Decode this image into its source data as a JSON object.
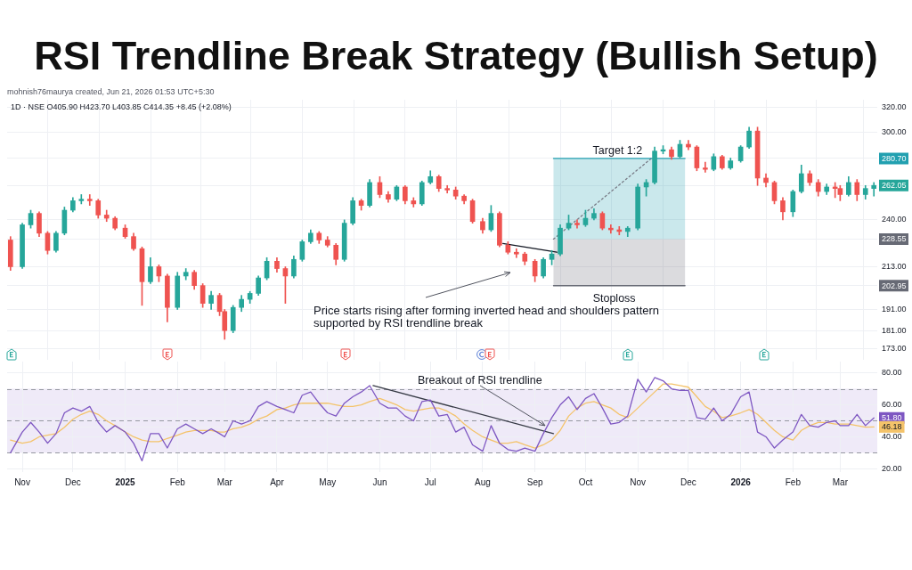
{
  "chart_data": [
    {
      "type": "candlestick",
      "title": "RSI Trendline Break Strategy (Bullish Setup)",
      "subtitle": "mohnish76maurya created, Jun 21, 2026 01:53 UTC+5:30",
      "x": [
        "2024-10-25",
        "2024-11-01",
        "2024-11-06",
        "2024-11-11",
        "2024-11-16",
        "2024-11-21",
        "2024-11-26",
        "2024-12-01",
        "2024-12-06",
        "2024-12-11",
        "2024-12-16",
        "2024-12-21",
        "2024-12-26",
        "2025-01-01",
        "2025-01-06",
        "2025-01-11",
        "2025-01-16",
        "2025-01-21",
        "2025-01-26",
        "2025-02-01",
        "2025-02-06",
        "2025-02-11",
        "2025-02-16",
        "2025-02-21",
        "2025-02-26",
        "2025-03-01",
        "2025-03-06",
        "2025-03-11",
        "2025-03-16",
        "2025-03-21",
        "2025-03-26",
        "2025-04-01",
        "2025-04-06",
        "2025-04-11",
        "2025-04-16",
        "2025-04-21",
        "2025-04-26",
        "2025-05-01",
        "2025-05-06",
        "2025-05-11",
        "2025-05-16",
        "2025-05-21",
        "2025-05-26",
        "2025-06-01",
        "2025-06-06",
        "2025-06-11",
        "2025-06-16",
        "2025-06-21",
        "2025-06-26",
        "2025-07-01",
        "2025-07-06",
        "2025-07-11",
        "2025-07-16",
        "2025-07-21",
        "2025-07-26",
        "2025-08-01",
        "2025-08-06",
        "2025-08-11",
        "2025-08-16",
        "2025-08-21",
        "2025-08-26",
        "2025-09-01",
        "2025-09-06",
        "2025-09-11",
        "2025-09-16",
        "2025-09-21",
        "2025-09-26",
        "2025-10-01",
        "2025-10-06",
        "2025-10-11",
        "2025-10-16",
        "2025-10-21",
        "2025-10-26",
        "2025-11-01",
        "2025-11-06",
        "2025-11-11",
        "2025-11-16",
        "2025-11-21",
        "2025-11-26",
        "2025-12-01",
        "2025-12-06",
        "2025-12-11",
        "2025-12-16",
        "2025-12-21",
        "2025-12-26",
        "2026-01-01",
        "2026-01-06",
        "2026-01-11",
        "2026-01-16",
        "2026-01-21",
        "2026-01-26",
        "2026-02-01",
        "2026-02-06",
        "2026-02-11",
        "2026-02-16",
        "2026-02-21",
        "2026-02-26",
        "2026-03-01",
        "2026-03-06",
        "2026-03-11",
        "2026-03-16",
        "2026-03-21"
      ],
      "ohlc": [
        [
          228,
          230,
          211,
          213
        ],
        [
          213,
          238,
          212,
          237
        ],
        [
          237,
          246,
          235,
          244
        ],
        [
          244,
          245,
          230,
          232
        ],
        [
          232,
          233,
          220,
          222
        ],
        [
          222,
          233,
          221,
          232
        ],
        [
          232,
          248,
          231,
          246
        ],
        [
          246,
          254,
          245,
          252
        ],
        [
          252,
          256,
          250,
          253
        ],
        [
          253,
          256,
          249,
          252
        ],
        [
          252,
          253,
          241,
          243
        ],
        [
          243,
          246,
          239,
          241
        ],
        [
          241,
          242,
          234,
          235
        ],
        [
          235,
          237,
          229,
          230
        ],
        [
          230,
          232,
          222,
          223
        ],
        [
          223,
          224,
          193,
          205
        ],
        [
          205,
          218,
          204,
          213
        ],
        [
          213,
          214,
          205,
          208
        ],
        [
          208,
          209,
          185,
          192
        ],
        [
          192,
          210,
          191,
          208
        ],
        [
          208,
          212,
          206,
          210
        ],
        [
          210,
          211,
          201,
          203
        ],
        [
          203,
          204,
          192,
          194
        ],
        [
          194,
          200,
          191,
          198
        ],
        [
          198,
          199,
          188,
          190
        ],
        [
          190,
          191,
          177,
          181
        ],
        [
          181,
          193,
          180,
          192
        ],
        [
          192,
          198,
          190,
          196
        ],
        [
          196,
          200,
          194,
          199
        ],
        [
          199,
          208,
          198,
          207
        ],
        [
          207,
          218,
          206,
          216
        ],
        [
          216,
          218,
          210,
          212
        ],
        [
          212,
          213,
          194,
          208
        ],
        [
          208,
          219,
          207,
          217
        ],
        [
          217,
          228,
          216,
          227
        ],
        [
          227,
          234,
          226,
          232
        ],
        [
          232,
          233,
          226,
          228
        ],
        [
          228,
          230,
          224,
          225
        ],
        [
          225,
          226,
          214,
          217
        ],
        [
          217,
          240,
          216,
          238
        ],
        [
          238,
          254,
          237,
          252
        ],
        [
          252,
          253,
          246,
          249
        ],
        [
          249,
          266,
          248,
          264
        ],
        [
          264,
          268,
          254,
          256
        ],
        [
          256,
          258,
          251,
          253
        ],
        [
          253,
          262,
          252,
          261
        ],
        [
          261,
          262,
          250,
          252
        ],
        [
          252,
          254,
          248,
          250
        ],
        [
          250,
          265,
          249,
          264
        ],
        [
          264,
          272,
          263,
          268
        ],
        [
          268,
          269,
          258,
          260
        ],
        [
          260,
          262,
          257,
          259
        ],
        [
          259,
          261,
          253,
          255
        ],
        [
          255,
          256,
          250,
          252
        ],
        [
          252,
          253,
          238,
          239
        ],
        [
          239,
          241,
          232,
          234
        ],
        [
          234,
          249,
          233,
          244
        ],
        [
          244,
          245,
          224,
          225
        ],
        [
          225,
          227,
          220,
          221
        ],
        [
          221,
          223,
          218,
          220
        ],
        [
          220,
          221,
          214,
          216
        ],
        [
          216,
          217,
          205,
          208
        ],
        [
          208,
          218,
          207,
          217
        ],
        [
          217,
          222,
          214,
          220
        ],
        [
          220,
          237,
          219,
          235
        ],
        [
          235,
          243,
          234,
          238
        ],
        [
          238,
          240,
          235,
          237
        ],
        [
          237,
          246,
          236,
          241
        ],
        [
          241,
          247,
          240,
          244
        ],
        [
          244,
          245,
          234,
          235
        ],
        [
          235,
          237,
          232,
          234
        ],
        [
          234,
          236,
          231,
          233
        ],
        [
          233,
          236,
          230,
          235
        ],
        [
          235,
          263,
          234,
          261
        ],
        [
          261,
          266,
          255,
          264
        ],
        [
          264,
          289,
          263,
          286
        ],
        [
          286,
          290,
          284,
          287
        ],
        [
          287,
          289,
          280,
          282
        ],
        [
          282,
          294,
          281,
          291
        ],
        [
          291,
          294,
          287,
          289
        ],
        [
          289,
          290,
          272,
          274
        ],
        [
          274,
          278,
          271,
          273
        ],
        [
          273,
          284,
          272,
          282
        ],
        [
          282,
          283,
          273,
          274
        ],
        [
          274,
          281,
          273,
          279
        ],
        [
          279,
          290,
          278,
          289
        ],
        [
          289,
          304,
          288,
          301
        ],
        [
          301,
          304,
          262,
          267
        ],
        [
          267,
          270,
          261,
          264
        ],
        [
          264,
          265,
          250,
          252
        ],
        [
          252,
          254,
          240,
          245
        ],
        [
          245,
          259,
          242,
          258
        ],
        [
          258,
          276,
          257,
          270
        ],
        [
          270,
          272,
          262,
          264
        ],
        [
          264,
          266,
          255,
          258
        ],
        [
          258,
          263,
          256,
          261
        ],
        [
          261,
          264,
          254,
          260
        ],
        [
          260,
          262,
          252,
          256
        ],
        [
          256,
          268,
          255,
          264
        ],
        [
          264,
          266,
          252,
          256
        ],
        [
          256,
          262,
          253,
          260
        ],
        [
          260,
          264,
          255,
          262.05
        ]
      ],
      "colors": [
        "#ef5350",
        "#26a69a",
        "#26a69a",
        "#ef5350",
        "#ef5350",
        "#26a69a",
        "#26a69a",
        "#26a69a",
        "#26a69a",
        "#ef5350",
        "#ef5350",
        "#ef5350",
        "#ef5350",
        "#ef5350",
        "#ef5350",
        "#ef5350",
        "#26a69a",
        "#ef5350",
        "#ef5350",
        "#26a69a",
        "#26a69a",
        "#ef5350",
        "#ef5350",
        "#26a69a",
        "#ef5350",
        "#ef5350",
        "#26a69a",
        "#26a69a",
        "#26a69a",
        "#26a69a",
        "#26a69a",
        "#ef5350",
        "#ef5350",
        "#26a69a",
        "#26a69a",
        "#26a69a",
        "#ef5350",
        "#ef5350",
        "#ef5350",
        "#26a69a",
        "#26a69a",
        "#ef5350",
        "#26a69a",
        "#ef5350",
        "#ef5350",
        "#26a69a",
        "#ef5350",
        "#ef5350",
        "#26a69a",
        "#26a69a",
        "#ef5350",
        "#ef5350",
        "#ef5350",
        "#ef5350",
        "#ef5350",
        "#ef5350",
        "#26a69a",
        "#ef5350",
        "#ef5350",
        "#ef5350",
        "#ef5350",
        "#ef5350",
        "#26a69a",
        "#26a69a",
        "#26a69a",
        "#26a69a",
        "#ef5350",
        "#26a69a",
        "#26a69a",
        "#ef5350",
        "#ef5350",
        "#ef5350",
        "#26a69a",
        "#26a69a",
        "#26a69a",
        "#26a69a",
        "#26a69a",
        "#ef5350",
        "#26a69a",
        "#ef5350",
        "#ef5350",
        "#ef5350",
        "#26a69a",
        "#ef5350",
        "#26a69a",
        "#26a69a",
        "#26a69a",
        "#ef5350",
        "#ef5350",
        "#ef5350",
        "#ef5350",
        "#26a69a",
        "#26a69a",
        "#ef5350",
        "#ef5350",
        "#26a69a",
        "#ef5350",
        "#ef5350",
        "#26a69a",
        "#ef5350",
        "#26a69a",
        "#26a69a"
      ],
      "series": [
        {
          "type": "line",
          "x": [
            "2025-09-12",
            "2025-11-29"
          ],
          "values": [
            280.7,
            280.7
          ],
          "lower": [
            228.55,
            228.55
          ],
          "upper": [
            280.7,
            280.7
          ],
          "color": "#22a0b0"
        },
        {
          "type": "line",
          "x": [
            "2025-09-12",
            "2025-11-29"
          ],
          "values": [
            202.95,
            202.95
          ],
          "lower": [
            202.95,
            202.95
          ],
          "upper": [
            228.55,
            228.55
          ],
          "color": "#676a75"
        },
        {
          "type": "line",
          "x": [
            "2025-09-12",
            "2025-11-09"
          ],
          "values": [
            228.55,
            280.7
          ],
          "color": "#787b86",
          "line_style": "dotted"
        },
        {
          "type": "line",
          "x": [
            "2025-08-13",
            "2025-09-14"
          ],
          "values": [
            226,
            221
          ],
          "color": "#131722"
        }
      ],
      "log": true,
      "ylim": [
        168,
        326
      ],
      "yticks": [
        {
          "value": 320,
          "label": "320.00"
        },
        {
          "value": 300,
          "label": "300.00"
        },
        {
          "value": 280.7,
          "label": "280.70"
        },
        {
          "value": 262.05,
          "label": "262.05"
        },
        {
          "value": 240,
          "label": "240.00"
        },
        {
          "value": 228.55,
          "label": "228.55"
        },
        {
          "value": 213,
          "label": "213.00"
        },
        {
          "value": 202.95,
          "label": "202.95"
        },
        {
          "value": 191,
          "label": "191.00"
        },
        {
          "value": 181,
          "label": "181.00"
        },
        {
          "value": 173,
          "label": "173.00"
        }
      ],
      "xlim": [
        "2024-10-23",
        "2026-03-23"
      ],
      "xticks": [
        {
          "value": "2024-11-01",
          "label": null
        },
        {
          "value": "2024-12-01",
          "label": null
        },
        {
          "value": "2025-01-01",
          "label": null
        },
        {
          "value": "2025-02-01",
          "label": null
        },
        {
          "value": "2025-03-01",
          "label": null
        },
        {
          "value": "2025-04-01",
          "label": null
        },
        {
          "value": "2025-05-01",
          "label": null
        },
        {
          "value": "2025-06-01",
          "label": null
        },
        {
          "value": "2025-07-01",
          "label": null
        },
        {
          "value": "2025-08-01",
          "label": null
        },
        {
          "value": "2025-09-01",
          "label": null
        },
        {
          "value": "2025-10-01",
          "label": null
        },
        {
          "value": "2025-11-01",
          "label": null
        },
        {
          "value": "2025-12-01",
          "label": null
        },
        {
          "value": "2026-01-01",
          "label": null
        },
        {
          "value": "2026-02-01",
          "label": null
        },
        {
          "value": "2026-03-01",
          "label": null
        }
      ],
      "tick_labels": "y",
      "grid": true,
      "annotations": [
        "1D · NSE O405.90 H423.70 L403.85 C414.35 +8.45 (+2.08%)",
        {
          "text": "Target 1:2",
          "x": "2025-10-20",
          "y": 280.7
        },
        {
          "text": "Stoploss",
          "x": "2025-10-18",
          "y": 202.95
        },
        "Price starts rising after forming inverted head and shoulders pattern supported by RSI trendline break"
      ]
    },
    {
      "type": "line",
      "x": [
        "2024-10-25",
        "2024-11-01",
        "2024-11-06",
        "2024-11-11",
        "2024-11-16",
        "2024-11-21",
        "2024-11-26",
        "2024-12-01",
        "2024-12-06",
        "2024-12-11",
        "2024-12-16",
        "2024-12-21",
        "2024-12-26",
        "2025-01-01",
        "2025-01-06",
        "2025-01-11",
        "2025-01-16",
        "2025-01-21",
        "2025-01-26",
        "2025-02-01",
        "2025-02-06",
        "2025-02-11",
        "2025-02-16",
        "2025-02-21",
        "2025-02-26",
        "2025-03-01",
        "2025-03-06",
        "2025-03-11",
        "2025-03-16",
        "2025-03-21",
        "2025-03-26",
        "2025-04-01",
        "2025-04-06",
        "2025-04-11",
        "2025-04-16",
        "2025-04-21",
        "2025-04-26",
        "2025-05-01",
        "2025-05-06",
        "2025-05-11",
        "2025-05-16",
        "2025-05-21",
        "2025-05-26",
        "2025-06-01",
        "2025-06-06",
        "2025-06-11",
        "2025-06-16",
        "2025-06-21",
        "2025-06-26",
        "2025-07-01",
        "2025-07-06",
        "2025-07-11",
        "2025-07-16",
        "2025-07-21",
        "2025-07-26",
        "2025-08-01",
        "2025-08-06",
        "2025-08-11",
        "2025-08-16",
        "2025-08-21",
        "2025-08-26",
        "2025-09-01",
        "2025-09-06",
        "2025-09-11",
        "2025-09-16",
        "2025-09-21",
        "2025-09-26",
        "2025-10-01",
        "2025-10-06",
        "2025-10-11",
        "2025-10-16",
        "2025-10-21",
        "2025-10-26",
        "2025-11-01",
        "2025-11-06",
        "2025-11-11",
        "2025-11-16",
        "2025-11-21",
        "2025-11-26",
        "2025-12-01",
        "2025-12-06",
        "2025-12-11",
        "2025-12-16",
        "2025-12-21",
        "2025-12-26",
        "2026-01-01",
        "2026-01-06",
        "2026-01-11",
        "2026-01-16",
        "2026-01-21",
        "2026-01-26",
        "2026-02-01",
        "2026-02-06",
        "2026-02-11",
        "2026-02-16",
        "2026-02-21",
        "2026-02-26",
        "2026-03-01",
        "2026-03-06",
        "2026-03-11",
        "2026-03-16",
        "2026-03-21"
      ],
      "series": [
        {
          "color": "#7e57c2",
          "values": [
            30,
            43,
            49,
            43,
            36,
            42,
            55,
            58,
            56,
            59,
            49,
            43,
            47,
            43,
            36,
            25,
            42,
            42,
            33,
            45,
            48,
            45,
            42,
            45,
            42,
            40,
            50,
            48,
            50,
            59,
            62,
            59,
            57,
            55,
            66,
            68,
            61,
            55,
            53,
            61,
            65,
            68,
            72,
            61,
            58,
            58,
            53,
            50,
            62,
            63,
            53,
            54,
            43,
            46,
            35,
            31,
            47,
            36,
            32,
            31,
            33,
            31,
            42,
            52,
            60,
            65,
            57,
            64,
            67,
            58,
            48,
            49,
            53,
            76,
            68,
            77,
            75,
            70,
            69,
            69,
            52,
            51,
            58,
            50,
            54,
            65,
            68,
            43,
            40,
            33,
            38,
            43,
            54,
            47,
            46,
            49,
            50,
            47,
            47,
            54,
            47,
            51.8
          ]
        },
        {
          "color": "#f4c36a",
          "values": [
            38,
            36,
            37,
            40,
            41,
            42,
            46,
            51,
            54,
            56,
            54,
            50,
            47,
            43,
            40,
            38,
            37,
            37,
            39,
            41,
            43,
            44,
            44,
            44,
            43,
            43,
            45,
            46,
            48,
            51,
            53,
            57,
            58,
            60,
            61,
            61,
            61,
            61,
            60,
            59,
            59,
            60,
            62,
            64,
            62,
            60,
            57,
            56,
            57,
            58,
            58,
            56,
            53,
            48,
            44,
            40,
            38,
            36,
            36,
            37,
            35,
            33,
            35,
            38,
            44,
            53,
            58,
            61,
            62,
            60,
            58,
            54,
            52,
            58,
            63,
            68,
            73,
            73,
            72,
            71,
            65,
            59,
            56,
            52,
            53,
            55,
            57,
            54,
            49,
            44,
            40,
            38,
            44,
            47,
            49,
            49,
            48,
            48,
            48,
            47,
            46,
            46.18
          ]
        },
        {
          "type": "line",
          "x": [
            "2025-05-28",
            "2025-09-12"
          ],
          "values": [
            72,
            42
          ],
          "color": "#363a45"
        }
      ],
      "ylim": [
        18,
        87
      ],
      "yticks": [
        {
          "value": 80,
          "label": "80.00"
        },
        {
          "value": 60,
          "label": "60.00"
        },
        {
          "value": 51.8,
          "label": "51.80"
        },
        {
          "value": 46.18,
          "label": "46.18"
        },
        {
          "value": 40,
          "label": "40.00"
        },
        {
          "value": 20,
          "label": "20.00"
        }
      ],
      "xlim": [
        "2024-10-23",
        "2026-03-23"
      ],
      "xticks": [
        {
          "value": "2024-11-01",
          "label": "Nov"
        },
        {
          "value": "2024-12-01",
          "label": "Dec"
        },
        {
          "value": "2025-01-01",
          "label": "2025"
        },
        {
          "value": "2025-02-01",
          "label": "Feb"
        },
        {
          "value": "2025-03-01",
          "label": "Mar"
        },
        {
          "value": "2025-04-01",
          "label": "Apr"
        },
        {
          "value": "2025-05-01",
          "label": "May"
        },
        {
          "value": "2025-06-01",
          "label": "Jun"
        },
        {
          "value": "2025-07-01",
          "label": "Jul"
        },
        {
          "value": "2025-08-01",
          "label": "Aug"
        },
        {
          "value": "2025-09-01",
          "label": "Sep"
        },
        {
          "value": "2025-10-01",
          "label": "Oct"
        },
        {
          "value": "2025-11-01",
          "label": "Nov"
        },
        {
          "value": "2025-12-01",
          "label": "Dec"
        },
        {
          "value": "2026-01-01",
          "label": "2026"
        },
        {
          "value": "2026-02-01",
          "label": "Feb"
        },
        {
          "value": "2026-03-01",
          "label": "Mar"
        }
      ],
      "grid": true,
      "bands": [
        {
          "axis": "y",
          "from": 30,
          "to": 70,
          "color": "#efeaf8"
        }
      ],
      "ref_lines": [
        {
          "axis": "y",
          "value": 70,
          "color": "#9598a1",
          "line_style": "dashed"
        },
        {
          "axis": "y",
          "value": 50,
          "color": "#9598a1",
          "line_style": "dashed"
        },
        {
          "axis": "y",
          "value": 30,
          "color": "#9598a1",
          "line_style": "dashed"
        }
      ],
      "annotations": [
        {
          "text": "Breakout of RSI trendline",
          "x": "2025-09-07",
          "y": 47
        }
      ]
    }
  ]
}
